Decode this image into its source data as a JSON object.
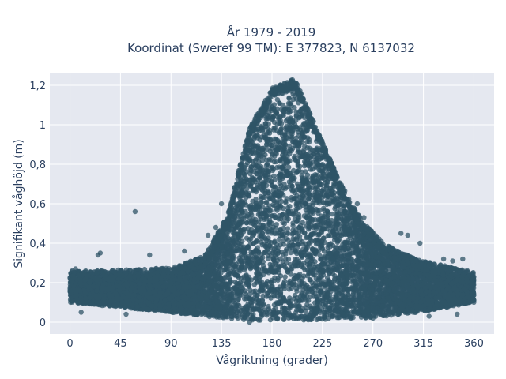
{
  "chart_data": {
    "type": "scatter",
    "title": "År 1979 - 2019",
    "subtitle": "Koordinat (Sweref 99 TM): E 377823, N 6137032",
    "xlabel": "Vågriktning (grader)",
    "ylabel": "Signifikant våghöjd (m)",
    "xlim": [
      -18,
      378
    ],
    "ylim": [
      -0.06,
      1.26
    ],
    "xticks": [
      0,
      45,
      90,
      135,
      180,
      225,
      270,
      315,
      360
    ],
    "xtick_labels": [
      "0",
      "45",
      "90",
      "135",
      "180",
      "225",
      "270",
      "315",
      "360"
    ],
    "yticks": [
      0,
      0.2,
      0.4,
      0.6,
      0.8,
      1,
      1.2
    ],
    "ytick_labels": [
      "0",
      "0,2",
      "0,4",
      "0,6",
      "0,8",
      "1",
      "1,2"
    ],
    "grid": true,
    "marker_color": "#2f5467",
    "plot_bg": "#e5e8f0",
    "outliers": [
      {
        "x": 58,
        "y": 0.56
      },
      {
        "x": 27,
        "y": 0.35
      },
      {
        "x": 25,
        "y": 0.34
      },
      {
        "x": 14,
        "y": 0.26
      },
      {
        "x": 2,
        "y": 0.26
      },
      {
        "x": 5,
        "y": 0.27
      },
      {
        "x": 71,
        "y": 0.34
      },
      {
        "x": 102,
        "y": 0.36
      },
      {
        "x": 135,
        "y": 0.6
      },
      {
        "x": 130,
        "y": 0.48
      },
      {
        "x": 295,
        "y": 0.45
      },
      {
        "x": 301,
        "y": 0.44
      },
      {
        "x": 312,
        "y": 0.4
      },
      {
        "x": 341,
        "y": 0.31
      },
      {
        "x": 350,
        "y": 0.32
      },
      {
        "x": 333,
        "y": 0.32
      },
      {
        "x": 256,
        "y": 0.6
      },
      {
        "x": 262,
        "y": 0.53
      },
      {
        "x": 123,
        "y": 0.44
      },
      {
        "x": 160,
        "y": 0.0
      },
      {
        "x": 50,
        "y": 0.04
      },
      {
        "x": 270,
        "y": 0.02
      },
      {
        "x": 320,
        "y": 0.03
      },
      {
        "x": 10,
        "y": 0.05
      },
      {
        "x": 345,
        "y": 0.04
      }
    ],
    "envelope": {
      "note_points": [
        {
          "x": 0,
          "y_top": 0.22,
          "y_bottom": 0.1
        },
        {
          "x": 90,
          "y_top": 0.24,
          "y_bottom": 0.05
        },
        {
          "x": 120,
          "y_top": 0.3,
          "y_bottom": 0.03
        },
        {
          "x": 140,
          "y_top": 0.5,
          "y_bottom": 0.02
        },
        {
          "x": 160,
          "y_top": 0.95,
          "y_bottom": 0.01
        },
        {
          "x": 180,
          "y_top": 1.15,
          "y_bottom": 0.01
        },
        {
          "x": 200,
          "y_top": 1.2,
          "y_bottom": 0.01
        },
        {
          "x": 220,
          "y_top": 0.95,
          "y_bottom": 0.01
        },
        {
          "x": 240,
          "y_top": 0.68,
          "y_bottom": 0.02
        },
        {
          "x": 260,
          "y_top": 0.48,
          "y_bottom": 0.02
        },
        {
          "x": 280,
          "y_top": 0.36,
          "y_bottom": 0.03
        },
        {
          "x": 310,
          "y_top": 0.28,
          "y_bottom": 0.05
        },
        {
          "x": 360,
          "y_top": 0.22,
          "y_bottom": 0.1
        }
      ]
    }
  }
}
